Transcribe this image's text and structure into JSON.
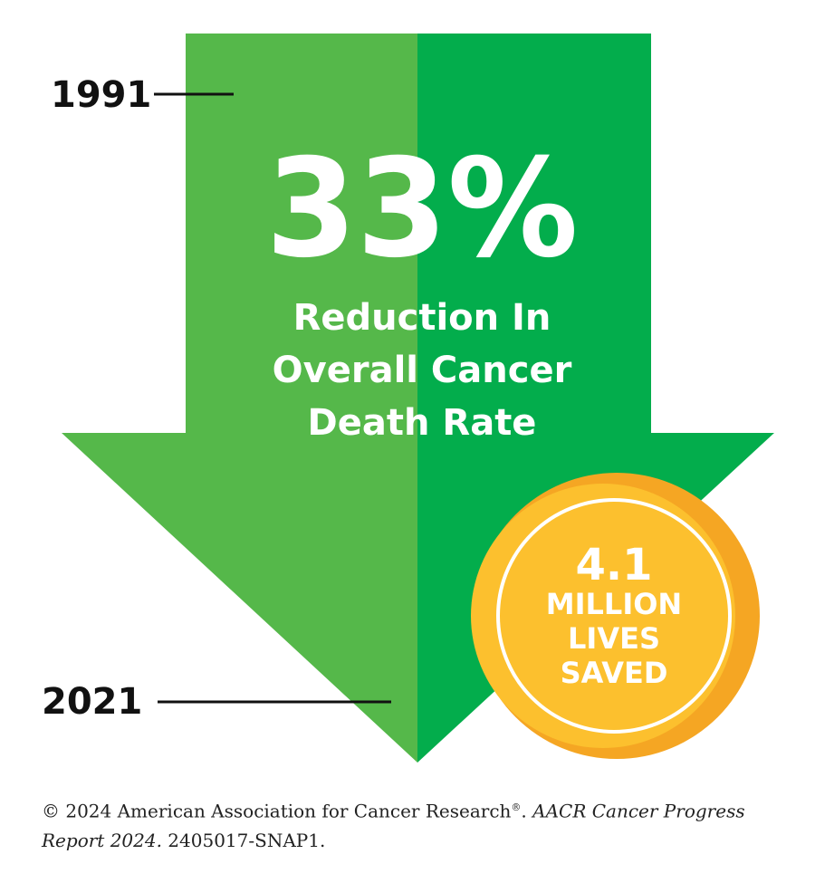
{
  "colors": {
    "arrow_left": "#55b84a",
    "arrow_right": "#03ad4c",
    "badge_outer": "#f5a623",
    "badge_inner": "#fcc02e",
    "ring": "#ffffff",
    "text_dark": "#111111"
  },
  "timeline": {
    "start_year": "1991",
    "end_year": "2021"
  },
  "headline": {
    "percentage": "33%",
    "line1": "Reduction In",
    "line2": "Overall Cancer",
    "line3": "Death Rate"
  },
  "badge": {
    "number": "4.1",
    "line1": "MILLION",
    "line2": "LIVES",
    "line3": "SAVED"
  },
  "footer": {
    "copyright": "© 2024 American Association for Cancer Research",
    "registered_mark": "®",
    "separator": ". ",
    "report_title": "AACR Cancer Progress Report 2024.",
    "code": " 2405017-SNAP1."
  }
}
